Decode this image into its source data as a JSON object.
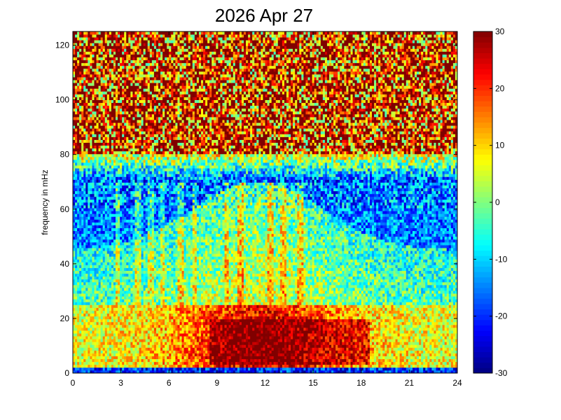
{
  "chart_data": {
    "type": "heatmap",
    "title": "2026 Apr 27",
    "xlabel": "",
    "ylabel": "frequency in mHz",
    "xlim": [
      0,
      24
    ],
    "ylim": [
      0,
      125
    ],
    "xticks": [
      "0",
      "3",
      "6",
      "9",
      "12",
      "15",
      "18",
      "21",
      "24"
    ],
    "yticks": [
      "0",
      "20",
      "40",
      "60",
      "80",
      "100",
      "120"
    ],
    "colorbar": {
      "colormap": "jet",
      "clim": [
        -30,
        30
      ],
      "ticks": [
        "30",
        "20",
        "10",
        "0",
        "-10",
        "-20",
        "-30"
      ]
    },
    "grid": false,
    "description_bands": [
      {
        "x_range": [
          0,
          24
        ],
        "y_range": [
          80,
          125
        ],
        "level": 25
      },
      {
        "x_range": [
          0,
          24
        ],
        "y_range": [
          60,
          80
        ],
        "level": -15
      },
      {
        "x_range": [
          8,
          14
        ],
        "y_range": [
          20,
          75
        ],
        "level": 0
      },
      {
        "x_range": [
          8.5,
          18.5
        ],
        "y_range": [
          3,
          20
        ],
        "level": 28
      },
      {
        "x_range": [
          0,
          8.5
        ],
        "y_range": [
          3,
          25
        ],
        "level": 8
      },
      {
        "x_range": [
          0,
          24
        ],
        "y_range": [
          0,
          2
        ],
        "level": -20
      }
    ]
  }
}
